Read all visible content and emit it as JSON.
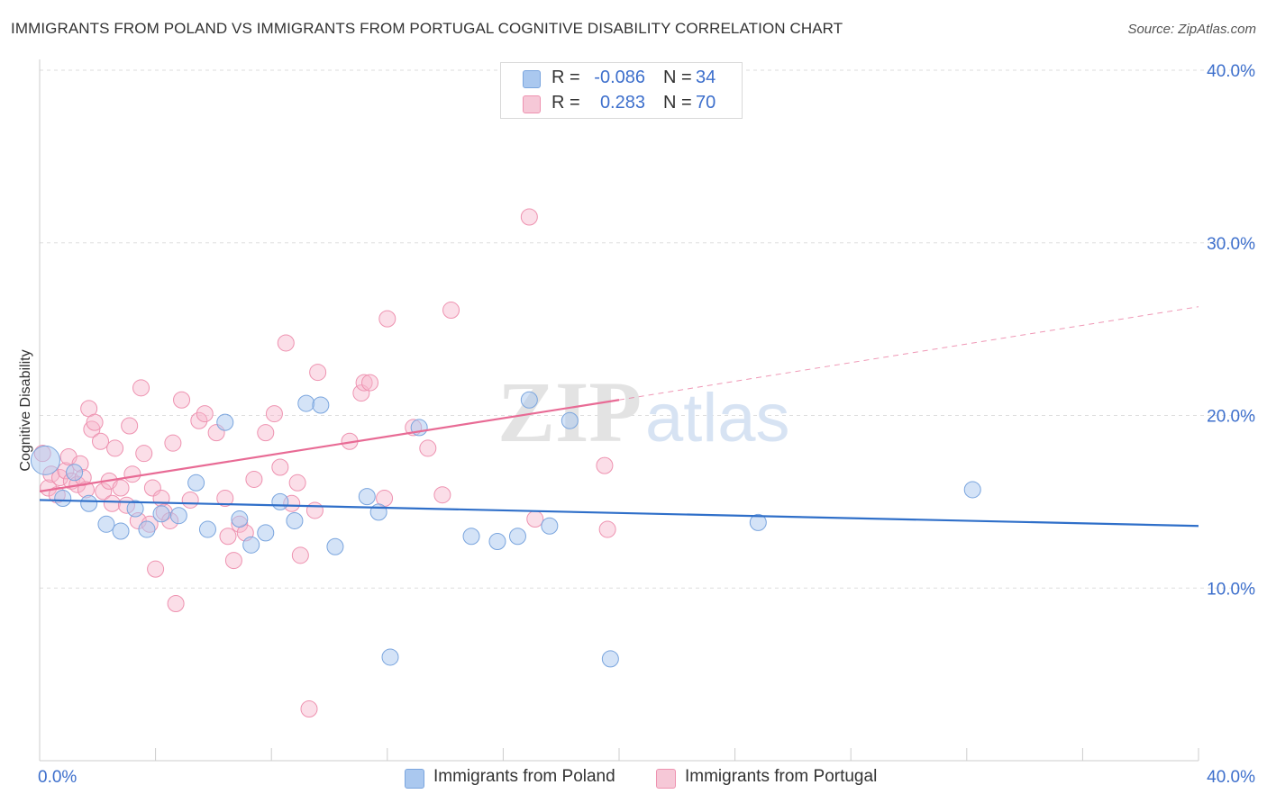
{
  "title": "IMMIGRANTS FROM POLAND VS IMMIGRANTS FROM PORTUGAL COGNITIVE DISABILITY CORRELATION CHART",
  "source": "Source: ZipAtlas.com",
  "watermark": {
    "part1": "ZIP",
    "part2": "atlas"
  },
  "legend_box": {
    "rows": [
      {
        "r_label": "R =",
        "r_value": "-0.086",
        "n_label": "N =",
        "n_value": "34"
      },
      {
        "r_label": "R =",
        "r_value": "0.283",
        "n_label": "N =",
        "n_value": "70"
      }
    ]
  },
  "bottom_legend": {
    "poland": "Immigrants from Poland",
    "portugal": "Immigrants from Portugal"
  },
  "colors": {
    "poland_fill": "#aac8ef",
    "poland_stroke": "#7aa5de",
    "poland_line": "#2f6fc9",
    "portugal_fill": "#f6b6cb",
    "portugal_stroke": "#ee92b0",
    "portugal_line": "#e86b95",
    "tick_label": "#3d6fcc"
  },
  "chart_data": {
    "type": "scatter",
    "title": "IMMIGRANTS FROM POLAND VS IMMIGRANTS FROM PORTUGAL COGNITIVE DISABILITY CORRELATION CHART",
    "xlabel": "",
    "ylabel": "Cognitive Disability",
    "xlim": [
      0,
      40
    ],
    "ylim": [
      0,
      40
    ],
    "x_tick_labels": [
      "0.0%",
      "40.0%"
    ],
    "y_ticks": [
      10,
      20,
      30,
      40
    ],
    "y_tick_labels": [
      "10.0%",
      "20.0%",
      "30.0%",
      "40.0%"
    ],
    "grid": "horizontal dashed",
    "legend_position": "top-center",
    "series": [
      {
        "name": "Immigrants from Poland",
        "r": -0.086,
        "n": 34,
        "trend": {
          "x": [
            0,
            40
          ],
          "y": [
            15.1,
            13.6
          ]
        },
        "points": [
          [
            0.2,
            17.4,
            16
          ],
          [
            0.8,
            15.2,
            9
          ],
          [
            1.2,
            16.7,
            9
          ],
          [
            1.7,
            14.9,
            9
          ],
          [
            2.3,
            13.7,
            9
          ],
          [
            2.8,
            13.3,
            9
          ],
          [
            3.3,
            14.6,
            9
          ],
          [
            3.7,
            13.4,
            9
          ],
          [
            4.2,
            14.3,
            9
          ],
          [
            4.8,
            14.2,
            9
          ],
          [
            5.4,
            16.1,
            9
          ],
          [
            5.8,
            13.4,
            9
          ],
          [
            6.4,
            19.6,
            9
          ],
          [
            6.9,
            14.0,
            9
          ],
          [
            7.3,
            12.5,
            9
          ],
          [
            7.8,
            13.2,
            9
          ],
          [
            8.3,
            15.0,
            9
          ],
          [
            8.8,
            13.9,
            9
          ],
          [
            9.2,
            20.7,
            9
          ],
          [
            9.7,
            20.6,
            9
          ],
          [
            10.2,
            12.4,
            9
          ],
          [
            11.3,
            15.3,
            9
          ],
          [
            11.7,
            14.4,
            9
          ],
          [
            12.1,
            6.0,
            9
          ],
          [
            13.1,
            19.3,
            9
          ],
          [
            14.9,
            13.0,
            9
          ],
          [
            15.8,
            12.7,
            9
          ],
          [
            16.5,
            13.0,
            9
          ],
          [
            16.9,
            20.9,
            9
          ],
          [
            17.6,
            13.6,
            9
          ],
          [
            18.3,
            19.7,
            9
          ],
          [
            19.7,
            5.9,
            9
          ],
          [
            24.8,
            13.8,
            9
          ],
          [
            32.2,
            15.7,
            9
          ]
        ]
      },
      {
        "name": "Immigrants from Portugal",
        "r": 0.283,
        "n": 70,
        "trend": {
          "x": [
            0,
            20
          ],
          "y": [
            15.6,
            20.9
          ]
        },
        "trend_dashed": {
          "x": [
            20,
            40
          ],
          "y": [
            20.9,
            26.3
          ]
        },
        "points": [
          [
            0.1,
            17.8,
            9
          ],
          [
            0.3,
            15.8,
            9
          ],
          [
            0.4,
            16.6,
            9
          ],
          [
            0.6,
            15.4,
            9
          ],
          [
            0.7,
            16.4,
            9
          ],
          [
            0.9,
            16.8,
            9
          ],
          [
            1.0,
            17.6,
            9
          ],
          [
            1.1,
            16.2,
            9
          ],
          [
            1.3,
            16.0,
            9
          ],
          [
            1.4,
            17.2,
            9
          ],
          [
            1.5,
            16.4,
            9
          ],
          [
            1.6,
            15.7,
            9
          ],
          [
            1.7,
            20.4,
            9
          ],
          [
            1.8,
            19.2,
            9
          ],
          [
            1.9,
            19.6,
            9
          ],
          [
            2.1,
            18.5,
            9
          ],
          [
            2.2,
            15.6,
            9
          ],
          [
            2.4,
            16.2,
            9
          ],
          [
            2.5,
            14.9,
            9
          ],
          [
            2.6,
            18.1,
            9
          ],
          [
            2.8,
            15.8,
            9
          ],
          [
            3.0,
            14.8,
            9
          ],
          [
            3.1,
            19.4,
            9
          ],
          [
            3.2,
            16.6,
            9
          ],
          [
            3.4,
            13.9,
            9
          ],
          [
            3.5,
            21.6,
            9
          ],
          [
            3.6,
            17.8,
            9
          ],
          [
            3.8,
            13.7,
            9
          ],
          [
            3.9,
            15.8,
            9
          ],
          [
            4.0,
            11.1,
            9
          ],
          [
            4.2,
            15.2,
            9
          ],
          [
            4.3,
            14.4,
            9
          ],
          [
            4.5,
            13.9,
            9
          ],
          [
            4.6,
            18.4,
            9
          ],
          [
            4.7,
            9.1,
            9
          ],
          [
            4.9,
            20.9,
            9
          ],
          [
            5.2,
            15.1,
            9
          ],
          [
            5.5,
            19.7,
            9
          ],
          [
            5.7,
            20.1,
            9
          ],
          [
            6.1,
            19.0,
            9
          ],
          [
            6.4,
            15.2,
            9
          ],
          [
            6.5,
            13.0,
            9
          ],
          [
            6.7,
            11.6,
            9
          ],
          [
            6.9,
            13.7,
            9
          ],
          [
            7.1,
            13.2,
            9
          ],
          [
            7.4,
            16.3,
            9
          ],
          [
            7.8,
            19.0,
            9
          ],
          [
            8.1,
            20.1,
            9
          ],
          [
            8.3,
            17.0,
            9
          ],
          [
            8.5,
            24.2,
            9
          ],
          [
            8.7,
            14.9,
            9
          ],
          [
            8.9,
            16.1,
            9
          ],
          [
            9.0,
            11.9,
            9
          ],
          [
            9.3,
            3.0,
            9
          ],
          [
            9.5,
            14.5,
            9
          ],
          [
            9.6,
            22.5,
            9
          ],
          [
            10.7,
            18.5,
            9
          ],
          [
            11.1,
            21.3,
            9
          ],
          [
            11.2,
            21.9,
            9
          ],
          [
            11.4,
            21.9,
            9
          ],
          [
            11.9,
            15.2,
            9
          ],
          [
            12.0,
            25.6,
            9
          ],
          [
            12.9,
            19.3,
            9
          ],
          [
            13.4,
            18.1,
            9
          ],
          [
            13.9,
            15.4,
            9
          ],
          [
            14.2,
            26.1,
            9
          ],
          [
            16.9,
            31.5,
            9
          ],
          [
            17.1,
            14.0,
            9
          ],
          [
            19.5,
            17.1,
            9
          ],
          [
            19.6,
            13.4,
            9
          ]
        ]
      }
    ]
  }
}
